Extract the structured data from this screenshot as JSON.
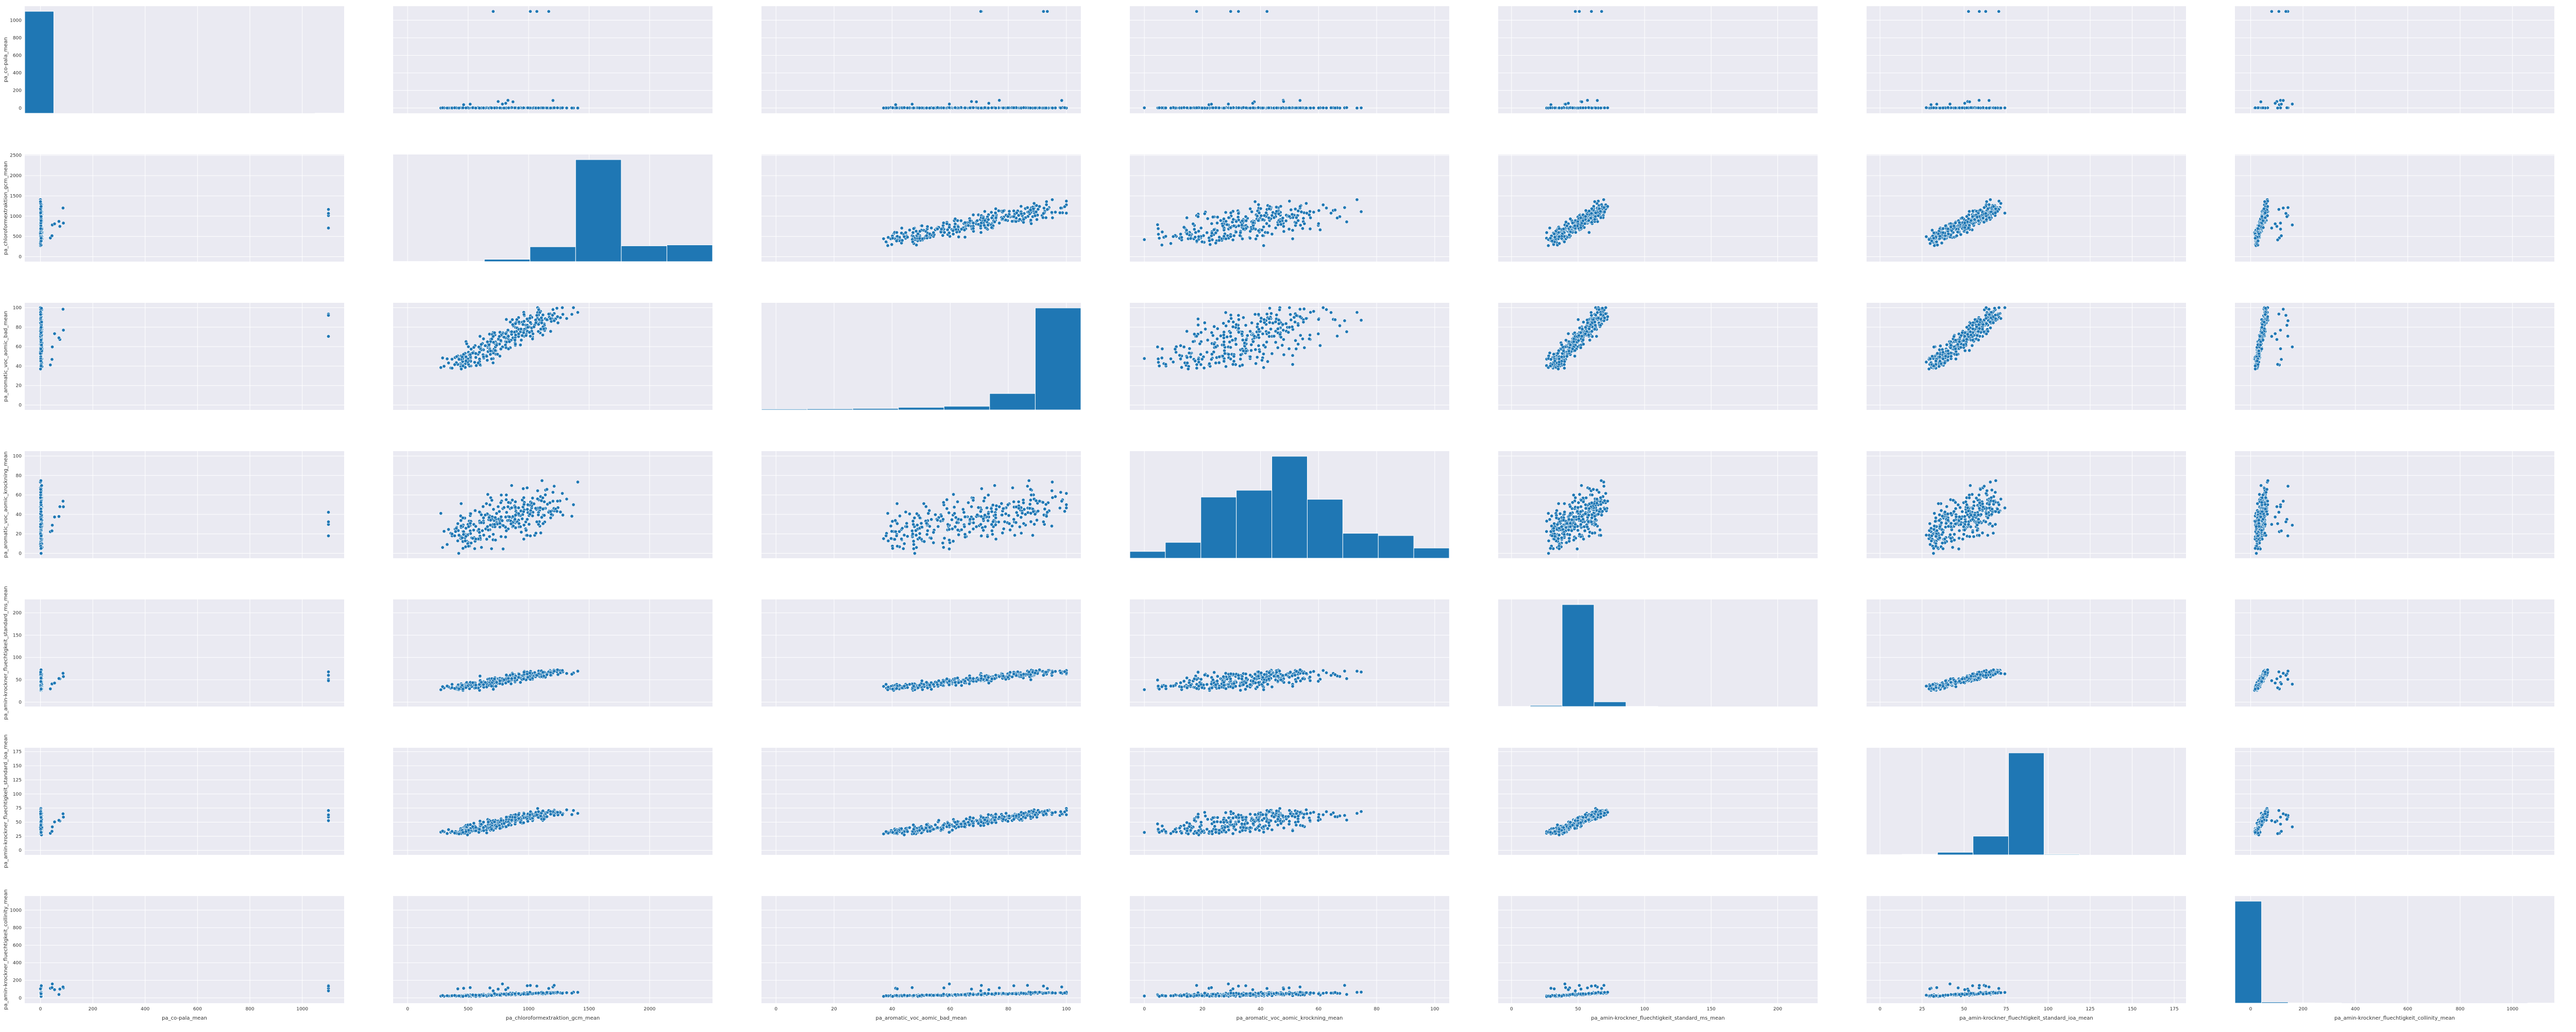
{
  "chart_data": {
    "type": "scatter",
    "layout": "pairplot",
    "diagonal": "histogram",
    "grid": true,
    "colors": {
      "marker": "#1f77b4",
      "edge": "#ffffff",
      "axes_bg": "#eaeaf2",
      "grid": "#ffffff"
    },
    "variables": [
      {
        "name": "pa_co-pala_mean",
        "lim": [
          -60,
          1160
        ],
        "xticks": [
          0,
          200,
          400,
          600,
          800,
          1000
        ],
        "yticks": [
          0,
          200,
          400,
          600,
          800,
          1000
        ]
      },
      {
        "name": "pa_chloroformextraktion_gcm_mean",
        "lim": [
          -120,
          2520
        ],
        "xticks": [
          0,
          500,
          1000,
          1500,
          2000
        ],
        "yticks": [
          0,
          500,
          1000,
          1500,
          2000,
          2500
        ]
      },
      {
        "name": "pa_aromatic_voc_aomic_bad_mean",
        "lim": [
          -5,
          105
        ],
        "xticks": [
          0,
          20,
          40,
          60,
          80,
          100
        ],
        "yticks": [
          0,
          20,
          40,
          60,
          80,
          100
        ]
      },
      {
        "name": "pa_aromatic_voc_aomic_krockning_mean",
        "lim": [
          -5,
          105
        ],
        "xticks": [
          0,
          20,
          40,
          60,
          80,
          100
        ],
        "yticks": [
          0,
          20,
          40,
          60,
          80,
          100
        ]
      },
      {
        "name": "pa_amin-krockner_fluechtigkeit_standard_ms_mean",
        "lim": [
          -10,
          230
        ],
        "xticks": [
          0,
          50,
          100,
          150,
          200
        ],
        "yticks": [
          0,
          50,
          100,
          150,
          200
        ]
      },
      {
        "name": "pa_amin-krockner_fluechtigkeit_standard_ioa_mean",
        "lim": [
          -8,
          182
        ],
        "xticks": [
          0,
          25,
          50,
          75,
          100,
          125,
          150,
          175
        ],
        "yticks": [
          0,
          25,
          50,
          75,
          100,
          125,
          150,
          175
        ]
      },
      {
        "name": "pa_amin-krockner_fluechtigkeit_collinity_mean",
        "lim": [
          -60,
          1160
        ],
        "xticks": [
          0,
          200,
          400,
          600,
          800,
          1000
        ],
        "yticks": [
          0,
          200,
          400,
          600,
          800,
          1000
        ]
      }
    ],
    "histograms": [
      [
        1050,
        0,
        0,
        0,
        0,
        0,
        0,
        0,
        0,
        0,
        1
      ],
      [
        2,
        3,
        25,
        160,
        1100,
        170,
        180
      ],
      [
        5,
        6,
        8,
        14,
        20,
        90,
        560
      ],
      [
        30,
        70,
        270,
        300,
        450,
        260,
        110,
        100,
        45
      ],
      [
        1,
        8,
        760,
        35,
        1,
        0,
        0,
        0,
        0,
        0
      ],
      [
        1,
        3,
        15,
        110,
        600,
        4,
        0,
        0,
        0
      ],
      [
        900,
        10,
        2,
        1,
        0,
        0,
        0,
        0,
        0,
        0,
        0,
        1
      ]
    ],
    "source_variables": [
      {
        "x": [
          0,
          0,
          0,
          1,
          1,
          2,
          3,
          5,
          8,
          12,
          20,
          30,
          45,
          60,
          1100
        ],
        "y": [
          0,
          0,
          0,
          2,
          3,
          4,
          5,
          6,
          5,
          4,
          3,
          1100,
          2,
          1,
          4
        ]
      }
    ]
  }
}
